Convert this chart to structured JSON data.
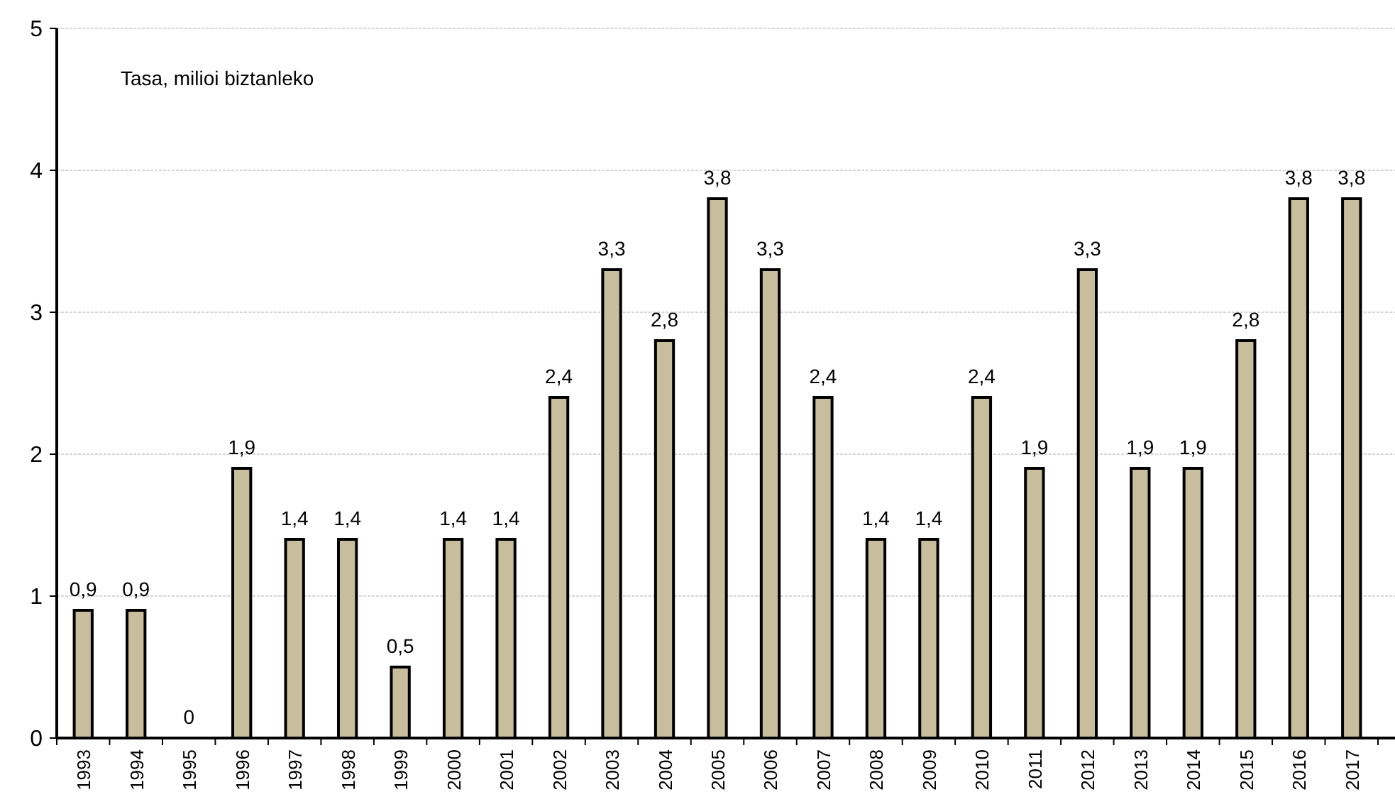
{
  "chart_data": {
    "type": "bar",
    "categories": [
      "1993",
      "1994",
      "1995",
      "1996",
      "1997",
      "1998",
      "1999",
      "2000",
      "2001",
      "2002",
      "2003",
      "2004",
      "2005",
      "2006",
      "2007",
      "2008",
      "2009",
      "2010",
      "2011",
      "2012",
      "2013",
      "2014",
      "2015",
      "2016",
      "2017"
    ],
    "values": [
      0.9,
      0.9,
      0,
      1.9,
      1.4,
      1.4,
      0.5,
      1.4,
      1.4,
      2.4,
      3.3,
      2.8,
      3.8,
      3.3,
      2.4,
      1.4,
      1.4,
      2.4,
      1.9,
      3.3,
      1.9,
      1.9,
      2.8,
      3.8,
      3.8
    ],
    "value_labels": [
      "0,9",
      "0,9",
      "0",
      "1,9",
      "1,4",
      "1,4",
      "0,5",
      "1,4",
      "1,4",
      "2,4",
      "3,3",
      "2,8",
      "3,8",
      "3,3",
      "2,4",
      "1,4",
      "1,4",
      "2,4",
      "1,9",
      "3,3",
      "1,9",
      "1,9",
      "2,8",
      "3,8",
      "3,8"
    ],
    "color": "#c8bd9c",
    "ylim": [
      0,
      5
    ],
    "yticks": [
      0,
      1,
      2,
      3,
      4,
      5
    ],
    "grid": "y",
    "annotations": [
      "Tasa, milioi biztanleko"
    ]
  }
}
